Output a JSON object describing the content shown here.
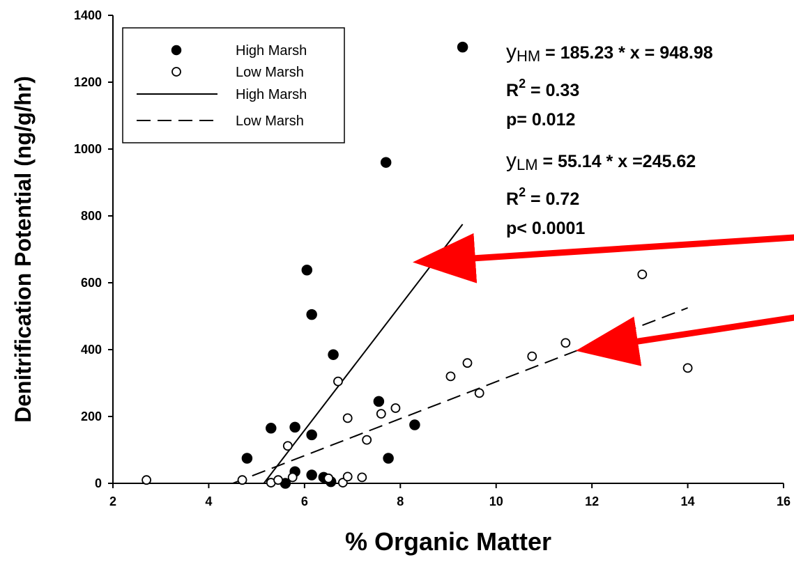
{
  "chart_data": {
    "type": "scatter",
    "title": "",
    "xlabel": "% Organic Matter",
    "ylabel": "Denitrification Potential (ng/g/hr)",
    "xlim": [
      2,
      16
    ],
    "ylim": [
      0,
      1400
    ],
    "xticks": [
      2,
      4,
      6,
      8,
      10,
      12,
      14,
      16
    ],
    "yticks": [
      0,
      200,
      400,
      600,
      800,
      1000,
      1200,
      1400
    ],
    "grid": false,
    "legend_position": "top-left",
    "legend": [
      {
        "label": "High Marsh",
        "marker": "filled-circle"
      },
      {
        "label": "Low Marsh",
        "marker": "open-circle"
      },
      {
        "label": "High Marsh",
        "line": "solid"
      },
      {
        "label": "Low Marsh",
        "line": "dashed"
      }
    ],
    "series": [
      {
        "name": "High Marsh",
        "kind": "points",
        "marker": "filled",
        "color": "#000000",
        "points": [
          [
            4.8,
            75
          ],
          [
            5.3,
            165
          ],
          [
            5.6,
            0
          ],
          [
            5.8,
            168
          ],
          [
            5.8,
            35
          ],
          [
            6.05,
            638
          ],
          [
            6.15,
            505
          ],
          [
            6.15,
            145
          ],
          [
            6.15,
            25
          ],
          [
            6.4,
            18
          ],
          [
            6.55,
            5
          ],
          [
            6.6,
            385
          ],
          [
            7.55,
            245
          ],
          [
            7.7,
            960
          ],
          [
            7.75,
            75
          ],
          [
            8.3,
            175
          ],
          [
            9.3,
            1305
          ]
        ]
      },
      {
        "name": "Low Marsh",
        "kind": "points",
        "marker": "open",
        "color": "#000000",
        "points": [
          [
            2.7,
            10
          ],
          [
            4.7,
            10
          ],
          [
            5.3,
            2
          ],
          [
            5.45,
            10
          ],
          [
            5.65,
            112
          ],
          [
            5.75,
            18
          ],
          [
            6.5,
            15
          ],
          [
            6.7,
            305
          ],
          [
            6.8,
            2
          ],
          [
            6.9,
            195
          ],
          [
            6.9,
            20
          ],
          [
            7.2,
            18
          ],
          [
            7.3,
            130
          ],
          [
            7.6,
            208
          ],
          [
            7.9,
            225
          ],
          [
            9.05,
            320
          ],
          [
            9.4,
            360
          ],
          [
            9.65,
            270
          ],
          [
            10.75,
            380
          ],
          [
            11.45,
            420
          ],
          [
            13.05,
            625
          ],
          [
            14.0,
            345
          ]
        ]
      },
      {
        "name": "High Marsh",
        "kind": "line",
        "style": "solid",
        "color": "#000000",
        "points": [
          [
            5.15,
            0
          ],
          [
            9.3,
            775
          ]
        ]
      },
      {
        "name": "Low Marsh",
        "kind": "line",
        "style": "dashed",
        "color": "#000000",
        "points": [
          [
            4.5,
            0
          ],
          [
            14.0,
            525
          ]
        ]
      }
    ],
    "annotations": {
      "hm_eq_y": "y",
      "hm_eq_sub": "HM",
      "hm_eq_rest": " = 185.23 * x = 948.98",
      "hm_r2_base": "R",
      "hm_r2_sup": "2",
      "hm_r2_rest": " = 0.33",
      "hm_p": "p= 0.012",
      "lm_eq_y": "y",
      "lm_eq_sub": "LM",
      "lm_eq_rest": " = 55.14 * x =245.62",
      "lm_r2_base": "R",
      "lm_r2_sup": "2",
      "lm_r2_rest": " = 0.72",
      "lm_p": "p< 0.0001"
    },
    "arrows": [
      {
        "target": "High Marsh",
        "from": [
          17.8,
          750
        ],
        "to": [
          8.65,
          665
        ],
        "color": "#ff0000"
      },
      {
        "target": "Low Marsh",
        "from": [
          17.8,
          530
        ],
        "to": [
          12.05,
          405
        ],
        "color": "#ff0000"
      }
    ]
  }
}
